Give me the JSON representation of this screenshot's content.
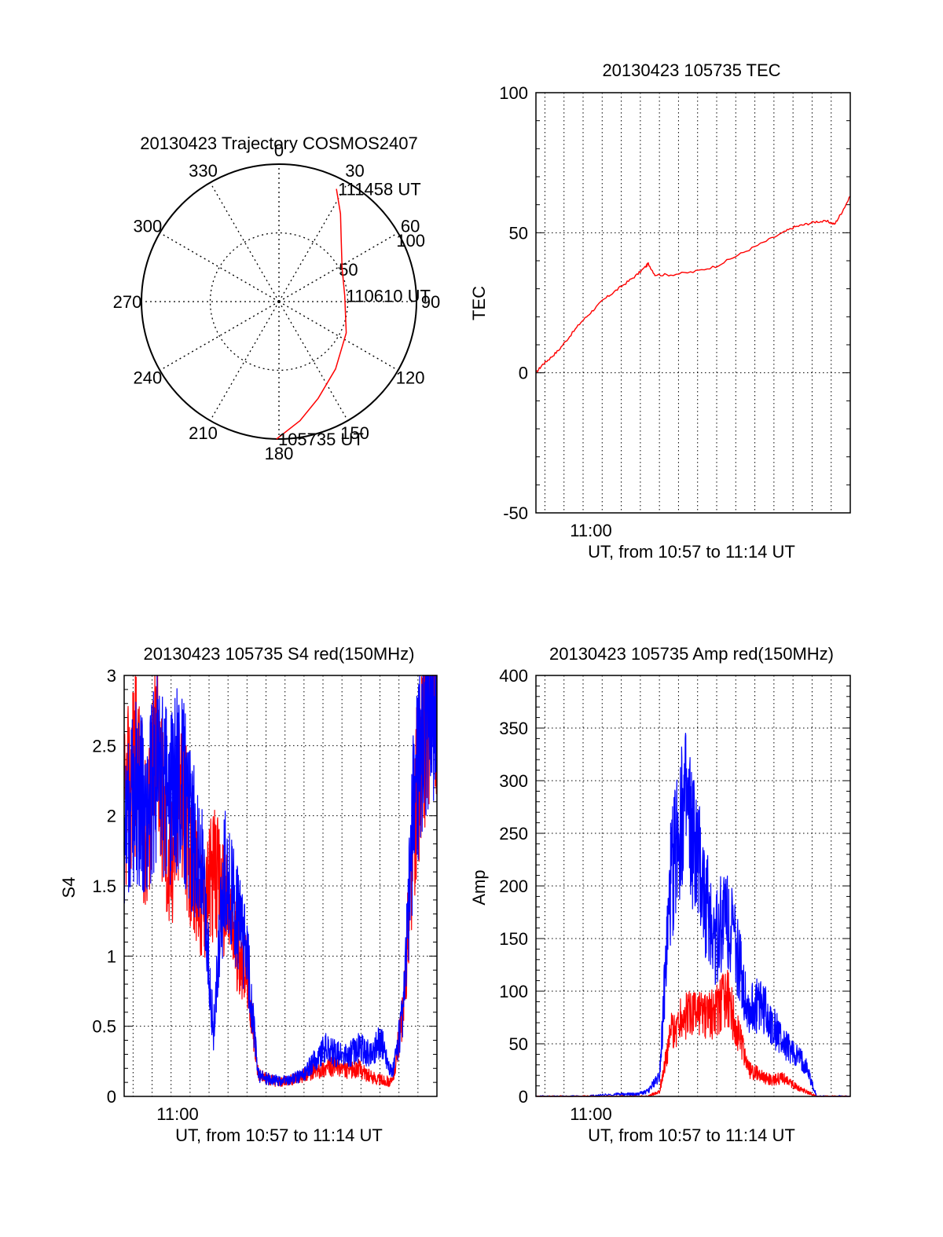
{
  "colors": {
    "red": "#ff0000",
    "blue": "#0000ff",
    "axis": "#000000",
    "grid": "#000000"
  },
  "chart_data": [
    {
      "type": "polar",
      "title": "20130423 Trajectory COSMOS2407",
      "angle_labels": [
        "0",
        "30",
        "60",
        "90",
        "120",
        "150",
        "180",
        "210",
        "240",
        "270",
        "300",
        "330"
      ],
      "radial_labels": [
        "50",
        "100"
      ],
      "trajectory_color": "#ff0000",
      "points": [
        {
          "az": 181,
          "r": 100
        },
        {
          "az": 170,
          "r": 88
        },
        {
          "az": 158,
          "r": 76
        },
        {
          "az": 140,
          "r": 64
        },
        {
          "az": 115,
          "r": 54
        },
        {
          "az": 85,
          "r": 48
        },
        {
          "az": 62,
          "r": 52
        },
        {
          "az": 45,
          "r": 64
        },
        {
          "az": 35,
          "r": 78
        },
        {
          "az": 27,
          "r": 92
        }
      ],
      "annotations": [
        {
          "text": "105735 UT",
          "az": 181,
          "r": 100
        },
        {
          "text": "110610 UT",
          "az": 85,
          "r": 48
        },
        {
          "text": "111458 UT",
          "az": 27,
          "r": 92
        }
      ]
    },
    {
      "type": "line",
      "title": "20130423 105735 TEC",
      "xlabel": "UT, from 10:57 to 11:14 UT",
      "ylabel": "TEC",
      "ylim": [
        -50,
        100
      ],
      "yticks": [
        "-50",
        "0",
        "50",
        "100"
      ],
      "xtick_label": "11:00",
      "grid": true,
      "series": [
        {
          "color": "#ff0000",
          "x": [
            0.0,
            0.3,
            0.6,
            1.0,
            1.5,
            2.0,
            2.5,
            3.0,
            3.5,
            4.0,
            4.5,
            4.9,
            5.0,
            5.3,
            6.0,
            7.0,
            8.0,
            9.0,
            10.0,
            11.0,
            11.5,
            12.0,
            12.5,
            13.0,
            13.3,
            13.6,
            14.0
          ],
          "values": [
            0,
            3,
            5,
            8,
            13,
            18,
            22,
            26,
            29,
            32,
            35,
            38,
            39,
            35,
            35,
            36,
            38,
            42,
            46,
            50,
            52,
            53,
            54,
            54,
            53,
            57,
            63
          ]
        }
      ]
    },
    {
      "type": "line",
      "title": "20130423 105735 S4 red(150MHz)",
      "xlabel": "UT, from 10:57 to 11:14 UT",
      "ylabel": "S4",
      "ylim": [
        0,
        3
      ],
      "yticks": [
        "0",
        "0.5",
        "1",
        "1.5",
        "2",
        "2.5",
        "3"
      ],
      "xtick_label": "11:00",
      "grid": true,
      "series": [
        {
          "color": "#ff0000",
          "x": [
            0.0,
            0.5,
            1.0,
            1.5,
            2.0,
            2.5,
            3.0,
            3.5,
            4.0,
            4.5,
            5.0,
            5.5,
            6.0,
            6.5,
            7.0,
            7.5,
            8.0,
            8.5,
            9.0,
            9.5,
            10.0,
            10.5,
            11.0,
            11.5,
            12.0,
            12.5,
            13.0,
            13.5,
            14.0
          ],
          "values": [
            2.0,
            2.4,
            1.8,
            2.6,
            1.5,
            2.2,
            1.7,
            1.3,
            1.6,
            1.4,
            1.1,
            0.9,
            0.15,
            0.12,
            0.1,
            0.12,
            0.15,
            0.18,
            0.2,
            0.22,
            0.18,
            0.2,
            0.14,
            0.12,
            0.1,
            0.6,
            2.0,
            2.8,
            3.0
          ]
        },
        {
          "color": "#0000ff",
          "x": [
            0.0,
            0.5,
            1.0,
            1.5,
            2.0,
            2.5,
            3.0,
            3.5,
            4.0,
            4.5,
            5.0,
            5.5,
            6.0,
            6.5,
            7.0,
            7.5,
            8.0,
            8.5,
            9.0,
            9.5,
            10.0,
            10.5,
            11.0,
            11.5,
            12.0,
            12.5,
            13.0,
            13.5,
            14.0
          ],
          "values": [
            1.8,
            2.2,
            2.0,
            2.4,
            2.1,
            2.3,
            1.9,
            1.6,
            0.45,
            1.6,
            1.3,
            1.0,
            0.15,
            0.12,
            0.11,
            0.12,
            0.15,
            0.25,
            0.35,
            0.3,
            0.28,
            0.35,
            0.3,
            0.4,
            0.15,
            0.6,
            2.2,
            2.8,
            3.0
          ]
        }
      ]
    },
    {
      "type": "line",
      "title": "20130423 105735 Amp red(150MHz)",
      "xlabel": "UT, from 10:57 to 11:14 UT",
      "ylabel": "Amp",
      "ylim": [
        0,
        400
      ],
      "yticks": [
        "0",
        "50",
        "100",
        "150",
        "200",
        "250",
        "300",
        "350",
        "400"
      ],
      "xtick_label": "11:00",
      "grid": true,
      "series": [
        {
          "color": "#0000ff",
          "x": [
            0.0,
            2.0,
            3.5,
            4.0,
            4.5,
            5.0,
            5.5,
            6.0,
            6.5,
            7.0,
            7.5,
            8.0,
            8.5,
            9.0,
            9.5,
            10.0,
            10.5,
            11.0,
            11.5,
            12.0,
            12.5,
            13.0,
            14.0
          ],
          "values": [
            0,
            0,
            2,
            2,
            2,
            5,
            20,
            200,
            280,
            240,
            190,
            150,
            180,
            130,
            80,
            90,
            70,
            50,
            40,
            30,
            0,
            0,
            0
          ]
        },
        {
          "color": "#ff0000",
          "x": [
            0.0,
            2.0,
            4.0,
            5.0,
            5.5,
            6.0,
            6.5,
            7.0,
            7.5,
            8.0,
            8.5,
            9.0,
            9.5,
            10.0,
            10.5,
            11.0,
            11.5,
            12.0,
            12.5,
            14.0
          ],
          "values": [
            0,
            0,
            0,
            0,
            5,
            60,
            75,
            80,
            75,
            80,
            95,
            60,
            25,
            20,
            15,
            18,
            10,
            5,
            0,
            0
          ]
        }
      ]
    }
  ]
}
